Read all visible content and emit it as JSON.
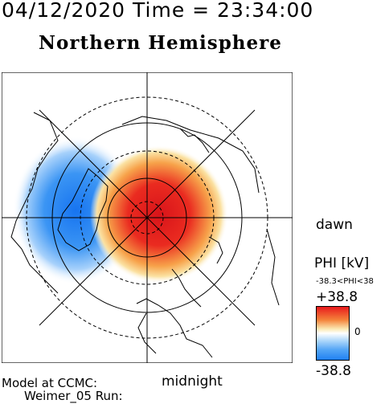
{
  "header": {
    "datetime": "04/12/2020 Time = 23:34:00",
    "title": "Northern Hemisphere"
  },
  "map": {
    "orientation_labels": {
      "right": "dawn",
      "bottom": "midnight"
    },
    "field": "PHI",
    "positive_cell": "top-right",
    "negative_cell": "left"
  },
  "colorbar": {
    "title": "PHI [kV]",
    "range_text": "-38.3<PHI<38",
    "max_label": "+38.8",
    "zero_label": "0",
    "min_label": "-38.8",
    "colors": {
      "positive": "#e8171c",
      "zero": "#ffffff",
      "negative": "#1e7ff2"
    }
  },
  "footer": {
    "model": "Model at CCMC:",
    "run": "Weimer_05 Run:"
  }
}
